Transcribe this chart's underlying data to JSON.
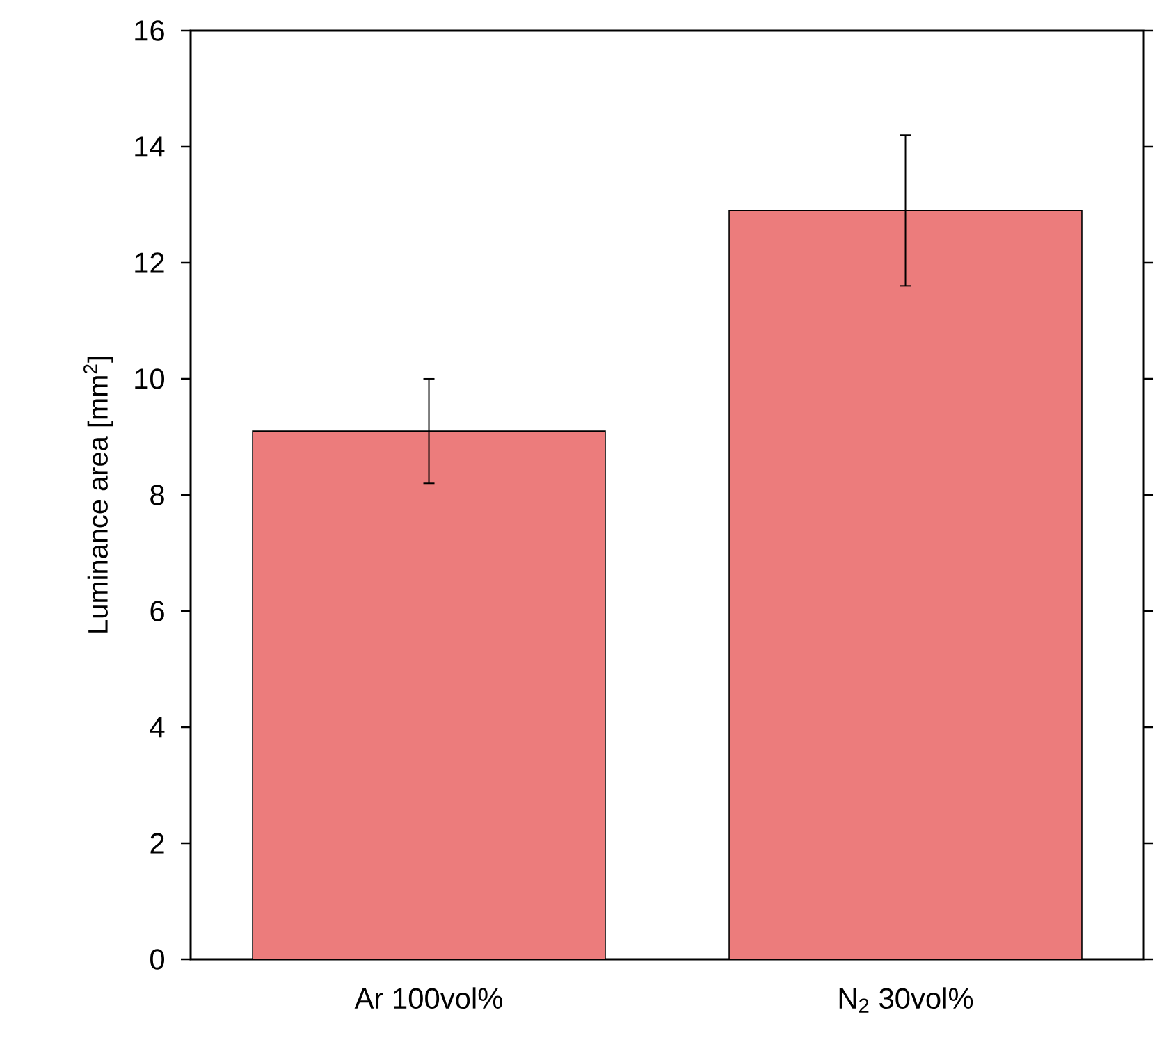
{
  "chart_data": {
    "type": "bar",
    "ylabel": "Luminance area [mm$^{2}$]",
    "categories": [
      "Ar 100vol%",
      "N$_{2}$ 30vol%"
    ],
    "values": [
      9.1,
      12.9
    ],
    "errors": [
      0.9,
      1.3
    ],
    "color": "#ec7c7c",
    "ylim": [
      0,
      16
    ],
    "yticks": [
      0,
      2,
      4,
      6,
      8,
      10,
      12,
      14,
      16
    ],
    "grid": false
  }
}
